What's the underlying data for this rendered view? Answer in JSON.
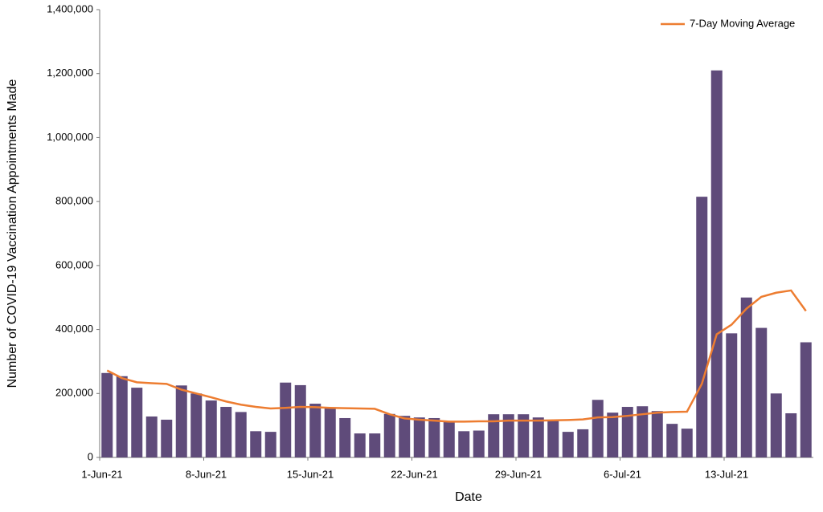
{
  "chart_data": {
    "type": "bar",
    "x_label": "Date",
    "y_label": "Number of COVID-19 Vaccination Appointments Made",
    "categories": [
      "1-Jun-21",
      null,
      null,
      null,
      null,
      null,
      null,
      "8-Jun-21",
      null,
      null,
      null,
      null,
      null,
      null,
      "15-Jun-21",
      null,
      null,
      null,
      null,
      null,
      null,
      "22-Jun-21",
      null,
      null,
      null,
      null,
      null,
      null,
      "29-Jun-21",
      null,
      null,
      null,
      null,
      null,
      null,
      "6-Jul-21",
      null,
      null,
      null,
      null,
      null,
      null,
      "13-Jul-21",
      null,
      null,
      null,
      null,
      null
    ],
    "values": [
      264000,
      254000,
      218000,
      128000,
      118000,
      225000,
      200000,
      178000,
      158000,
      142000,
      82000,
      80000,
      234000,
      226000,
      168000,
      155000,
      123000,
      75000,
      75000,
      136000,
      130000,
      125000,
      123000,
      112000,
      82000,
      84000,
      135000,
      135000,
      135000,
      125000,
      115000,
      80000,
      88000,
      180000,
      140000,
      158000,
      160000,
      145000,
      105000,
      90000,
      815000,
      1210000,
      388000,
      500000,
      405000,
      200000,
      138000,
      360000
    ],
    "color": "#5f4b7a",
    "series": [
      {
        "name": "7-Day Moving Average",
        "color": "#ed7d31",
        "values": [
          272000,
          248000,
          235000,
          232000,
          230000,
          212000,
          200000,
          188000,
          175000,
          165000,
          158000,
          153000,
          155000,
          158000,
          157000,
          155000,
          154000,
          153000,
          152000,
          135000,
          122000,
          118000,
          115000,
          112000,
          112000,
          113000,
          113000,
          115000,
          115000,
          115000,
          116000,
          117000,
          119000,
          125000,
          126000,
          130000,
          135000,
          140000,
          142000,
          143000,
          230000,
          385000,
          415000,
          465000,
          502000,
          515000,
          522000,
          458000
        ]
      }
    ],
    "ylim": [
      0,
      1400000
    ],
    "yticks": [
      0,
      {
        "value": 200000,
        "label": "200,000"
      },
      {
        "value": 400000,
        "label": "400,000"
      },
      {
        "value": 600000,
        "label": "600,000"
      },
      {
        "value": 800000,
        "label": "800,000"
      },
      {
        "value": 1000000,
        "label": "1,000,000"
      },
      {
        "value": 1200000,
        "label": "1,200,000"
      },
      {
        "value": 1400000,
        "label": "1,400,000"
      }
    ],
    "grid": false,
    "legend": "top-right"
  }
}
